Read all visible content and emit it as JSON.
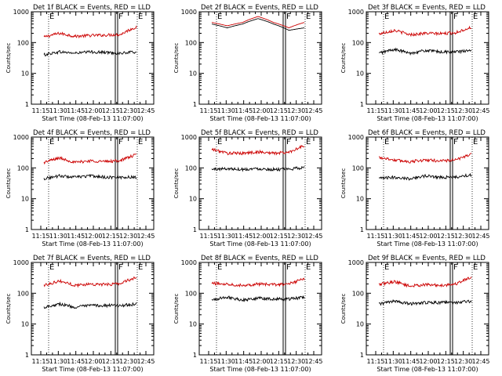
{
  "figure": {
    "background": "#ffffff",
    "axis_color": "#000000"
  },
  "chart_data": [
    {
      "type": "line",
      "title": "Det 1f BLACK = Events, RED = LLD",
      "xlabel": "Start Time (08-Feb-13 11:07:00)",
      "ylabel": "Counts/sec",
      "yscale": "log",
      "ylim": [
        1,
        1000
      ],
      "yticks": [
        "1",
        "10",
        "100",
        "1000"
      ],
      "xticks": [
        "11:15",
        "11:30",
        "11:45",
        "12:00",
        "12:15",
        "12:30",
        "12:45"
      ],
      "markers": [
        "E",
        "F",
        "E"
      ],
      "series": [
        {
          "color": "#cc0000",
          "anchors": [
            150,
            200,
            160,
            170,
            175,
            185,
            320
          ]
        },
        {
          "color": "#000000",
          "anchors": [
            40,
            50,
            45,
            50,
            48,
            45,
            50
          ]
        }
      ]
    },
    {
      "type": "line",
      "title": "Det 2f BLACK = Events, RED = LLD",
      "xlabel": "Start Time (08-Feb-13 11:07:00)",
      "ylabel": "Counts/sec",
      "yscale": "log",
      "ylim": [
        1,
        1000
      ],
      "yticks": [
        "1",
        "10",
        "100",
        "1000"
      ],
      "xticks": [
        "11:15",
        "11:30",
        "11:45",
        "12:00",
        "12:15",
        "12:30",
        "12:45"
      ],
      "markers": [
        "E",
        "F",
        "E"
      ],
      "series": [
        {
          "color": "#cc0000",
          "anchors": [
            450,
            350,
            450,
            700,
            450,
            300,
            450
          ]
        },
        {
          "color": "#000000",
          "anchors": [
            400,
            300,
            400,
            600,
            400,
            250,
            300
          ]
        }
      ]
    },
    {
      "type": "line",
      "title": "Det 3f BLACK = Events, RED = LLD",
      "xlabel": "Start Time (08-Feb-13 11:07:00)",
      "ylabel": "Counts/sec",
      "yscale": "log",
      "ylim": [
        1,
        1000
      ],
      "yticks": [
        "1",
        "10",
        "100",
        "1000"
      ],
      "xticks": [
        "11:15",
        "11:30",
        "11:45",
        "12:00",
        "12:15",
        "12:30",
        "12:45"
      ],
      "markers": [
        "E",
        "F",
        "E"
      ],
      "series": [
        {
          "color": "#cc0000",
          "anchors": [
            190,
            250,
            180,
            200,
            195,
            210,
            310
          ]
        },
        {
          "color": "#000000",
          "anchors": [
            45,
            60,
            45,
            55,
            50,
            50,
            55
          ]
        }
      ]
    },
    {
      "type": "line",
      "title": "Det 4f BLACK = Events, RED = LLD",
      "xlabel": "Start Time (08-Feb-13 11:07:00)",
      "ylabel": "Counts/sec",
      "yscale": "log",
      "ylim": [
        1,
        1000
      ],
      "yticks": [
        "1",
        "10",
        "100",
        "1000"
      ],
      "xticks": [
        "11:15",
        "11:30",
        "11:45",
        "12:00",
        "12:15",
        "12:30",
        "12:45"
      ],
      "markers": [
        "E",
        "F",
        "E"
      ],
      "series": [
        {
          "color": "#cc0000",
          "anchors": [
            150,
            210,
            150,
            170,
            160,
            175,
            270
          ]
        },
        {
          "color": "#000000",
          "anchors": [
            45,
            55,
            50,
            55,
            50,
            50,
            50
          ]
        }
      ]
    },
    {
      "type": "line",
      "title": "Det 5f BLACK = Events, RED = LLD",
      "xlabel": "Start Time (08-Feb-13 11:07:00)",
      "ylabel": "Counts/sec",
      "yscale": "log",
      "ylim": [
        1,
        1000
      ],
      "yticks": [
        "1",
        "10",
        "100",
        "1000"
      ],
      "xticks": [
        "11:15",
        "11:30",
        "11:45",
        "12:00",
        "12:15",
        "12:30",
        "12:45"
      ],
      "markers": [
        "E",
        "F",
        "E"
      ],
      "series": [
        {
          "color": "#cc0000",
          "anchors": [
            400,
            300,
            300,
            330,
            300,
            320,
            520
          ]
        },
        {
          "color": "#000000",
          "anchors": [
            90,
            95,
            90,
            95,
            90,
            90,
            105
          ]
        }
      ]
    },
    {
      "type": "line",
      "title": "Det 6f BLACK = Events, RED = LLD",
      "xlabel": "Start Time (08-Feb-13 11:07:00)",
      "ylabel": "Counts/sec",
      "yscale": "log",
      "ylim": [
        1,
        1000
      ],
      "yticks": [
        "1",
        "10",
        "100",
        "1000"
      ],
      "xticks": [
        "11:15",
        "11:30",
        "11:45",
        "12:00",
        "12:15",
        "12:30",
        "12:45"
      ],
      "markers": [
        "E",
        "F",
        "E"
      ],
      "series": [
        {
          "color": "#cc0000",
          "anchors": [
            220,
            180,
            160,
            180,
            170,
            180,
            280
          ]
        },
        {
          "color": "#000000",
          "anchors": [
            45,
            50,
            45,
            55,
            50,
            50,
            60
          ]
        }
      ]
    },
    {
      "type": "line",
      "title": "Det 7f BLACK = Events, RED = LLD",
      "xlabel": "Start Time (08-Feb-13 11:07:00)",
      "ylabel": "Counts/sec",
      "yscale": "log",
      "ylim": [
        1,
        1000
      ],
      "yticks": [
        "1",
        "10",
        "100",
        "1000"
      ],
      "xticks": [
        "11:15",
        "11:30",
        "11:45",
        "12:00",
        "12:15",
        "12:30",
        "12:45"
      ],
      "markers": [
        "E",
        "F",
        "E"
      ],
      "series": [
        {
          "color": "#cc0000",
          "anchors": [
            180,
            250,
            180,
            200,
            190,
            210,
            330
          ]
        },
        {
          "color": "#000000",
          "anchors": [
            35,
            45,
            35,
            40,
            40,
            40,
            45
          ]
        }
      ]
    },
    {
      "type": "line",
      "title": "Det 8f BLACK = Events, RED = LLD",
      "xlabel": "Start Time (08-Feb-13 11:07:00)",
      "ylabel": "Counts/sec",
      "yscale": "log",
      "ylim": [
        1,
        1000
      ],
      "yticks": [
        "1",
        "10",
        "100",
        "1000"
      ],
      "xticks": [
        "11:15",
        "11:30",
        "11:45",
        "12:00",
        "12:15",
        "12:30",
        "12:45"
      ],
      "markers": [
        "E",
        "F",
        "E"
      ],
      "series": [
        {
          "color": "#cc0000",
          "anchors": [
            210,
            200,
            180,
            200,
            190,
            200,
            290
          ]
        },
        {
          "color": "#000000",
          "anchors": [
            60,
            75,
            60,
            70,
            65,
            65,
            75
          ]
        }
      ]
    },
    {
      "type": "line",
      "title": "Det 9f BLACK = Events, RED = LLD",
      "xlabel": "Start Time (08-Feb-13 11:07:00)",
      "ylabel": "Counts/sec",
      "yscale": "log",
      "ylim": [
        1,
        1000
      ],
      "yticks": [
        "1",
        "10",
        "100",
        "1000"
      ],
      "xticks": [
        "11:15",
        "11:30",
        "11:45",
        "12:00",
        "12:15",
        "12:30",
        "12:45"
      ],
      "markers": [
        "E",
        "F",
        "E"
      ],
      "series": [
        {
          "color": "#cc0000",
          "anchors": [
            190,
            240,
            170,
            190,
            180,
            200,
            330
          ]
        },
        {
          "color": "#000000",
          "anchors": [
            45,
            55,
            45,
            50,
            50,
            50,
            55
          ]
        }
      ]
    }
  ]
}
